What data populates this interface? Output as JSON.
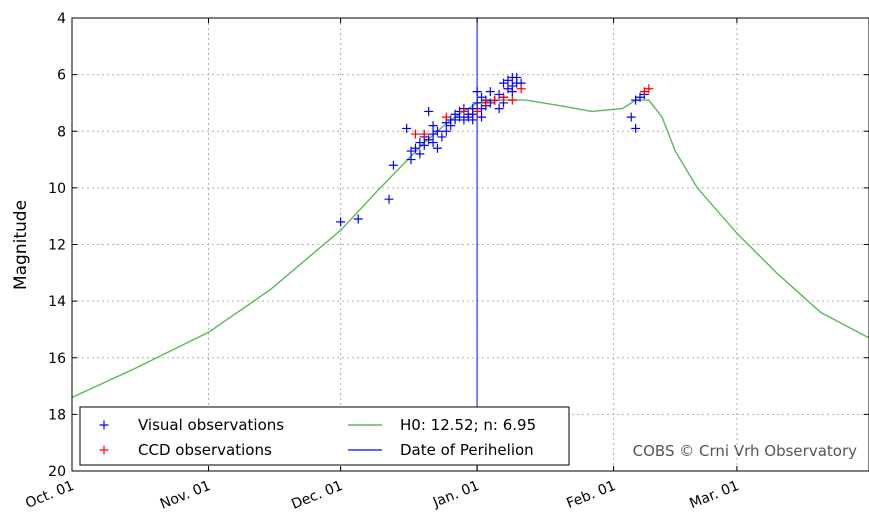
{
  "chart_data": {
    "type": "scatter",
    "ylabel": "Magnitude",
    "x_axis_type": "date",
    "xlim": [
      "2012-10-01",
      "2013-03-31"
    ],
    "xticks": [
      {
        "date": "2012-10-01",
        "label": "Oct. 01"
      },
      {
        "date": "2012-11-01",
        "label": "Nov. 01"
      },
      {
        "date": "2012-12-01",
        "label": "Dec. 01"
      },
      {
        "date": "2013-01-01",
        "label": "Jan. 01"
      },
      {
        "date": "2013-02-01",
        "label": "Feb. 01"
      },
      {
        "date": "2013-03-01",
        "label": "Mar. 01"
      }
    ],
    "ylim": [
      20,
      4
    ],
    "y_inverted": true,
    "yticks": [
      4,
      6,
      8,
      10,
      12,
      14,
      16,
      18,
      20
    ],
    "grid": true,
    "legend_position": "bottom-left",
    "colors": {
      "visual": "#0000ff",
      "ccd": "#ff0000",
      "model": "#5cb85c",
      "perihelion": "#3333ff"
    },
    "series": [
      {
        "name": "Visual observations",
        "marker": "+",
        "color": "#0000ff",
        "points": [
          [
            "2012-12-01",
            11.2
          ],
          [
            "2012-12-05",
            11.1
          ],
          [
            "2012-12-12",
            10.4
          ],
          [
            "2012-12-13",
            9.2
          ],
          [
            "2012-12-16",
            7.9
          ],
          [
            "2012-12-17",
            8.7
          ],
          [
            "2012-12-17",
            9.0
          ],
          [
            "2012-12-18",
            8.6
          ],
          [
            "2012-12-19",
            8.4
          ],
          [
            "2012-12-19",
            8.8
          ],
          [
            "2012-12-20",
            8.2
          ],
          [
            "2012-12-20",
            8.5
          ],
          [
            "2012-12-21",
            8.3
          ],
          [
            "2012-12-21",
            7.3
          ],
          [
            "2012-12-22",
            8.4
          ],
          [
            "2012-12-22",
            8.1
          ],
          [
            "2012-12-22",
            7.8
          ],
          [
            "2012-12-23",
            8.6
          ],
          [
            "2012-12-23",
            8.0
          ],
          [
            "2012-12-24",
            8.2
          ],
          [
            "2012-12-25",
            8.0
          ],
          [
            "2012-12-25",
            7.7
          ],
          [
            "2012-12-26",
            7.6
          ],
          [
            "2012-12-26",
            7.8
          ],
          [
            "2012-12-27",
            7.4
          ],
          [
            "2012-12-27",
            7.6
          ],
          [
            "2012-12-28",
            7.5
          ],
          [
            "2012-12-28",
            7.3
          ],
          [
            "2012-12-29",
            7.6
          ],
          [
            "2012-12-29",
            7.2
          ],
          [
            "2012-12-30",
            7.4
          ],
          [
            "2012-12-30",
            7.5
          ],
          [
            "2012-12-31",
            7.2
          ],
          [
            "2012-12-31",
            7.4
          ],
          [
            "2012-12-31",
            7.6
          ],
          [
            "2013-01-01",
            7.0
          ],
          [
            "2013-01-01",
            7.3
          ],
          [
            "2013-01-01",
            6.6
          ],
          [
            "2013-01-02",
            7.2
          ],
          [
            "2013-01-02",
            6.8
          ],
          [
            "2013-01-02",
            7.5
          ],
          [
            "2013-01-03",
            6.9
          ],
          [
            "2013-01-03",
            7.1
          ],
          [
            "2013-01-04",
            6.6
          ],
          [
            "2013-01-04",
            7.0
          ],
          [
            "2013-01-05",
            6.9
          ],
          [
            "2013-01-06",
            6.7
          ],
          [
            "2013-01-06",
            7.2
          ],
          [
            "2013-01-07",
            6.3
          ],
          [
            "2013-01-07",
            6.8
          ],
          [
            "2013-01-07",
            7.0
          ],
          [
            "2013-01-08",
            6.5
          ],
          [
            "2013-01-08",
            6.2
          ],
          [
            "2013-01-09",
            6.4
          ],
          [
            "2013-01-09",
            6.6
          ],
          [
            "2013-01-09",
            6.1
          ],
          [
            "2013-01-10",
            6.3
          ],
          [
            "2013-01-10",
            6.1
          ],
          [
            "2013-01-11",
            6.3
          ],
          [
            "2013-02-05",
            7.5
          ],
          [
            "2013-02-06",
            7.9
          ],
          [
            "2013-02-06",
            6.9
          ],
          [
            "2013-02-07",
            6.8
          ],
          [
            "2013-02-08",
            6.7
          ]
        ]
      },
      {
        "name": "CCD observations",
        "marker": "+",
        "color": "#ff0000",
        "points": [
          [
            "2012-12-18",
            8.1
          ],
          [
            "2012-12-20",
            8.1
          ],
          [
            "2012-12-25",
            7.5
          ],
          [
            "2012-12-29",
            7.3
          ],
          [
            "2013-01-01",
            7.3
          ],
          [
            "2013-01-03",
            7.0
          ],
          [
            "2013-01-05",
            6.9
          ],
          [
            "2013-01-07",
            6.8
          ],
          [
            "2013-01-09",
            6.9
          ],
          [
            "2013-01-11",
            6.5
          ],
          [
            "2013-02-09",
            6.5
          ],
          [
            "2013-02-08",
            6.6
          ]
        ]
      },
      {
        "name": "H0: 12.52; n: 6.95",
        "type": "line",
        "color": "#5cb85c",
        "points": [
          [
            "2012-10-01",
            17.4
          ],
          [
            "2012-10-15",
            16.4
          ],
          [
            "2012-11-01",
            15.1
          ],
          [
            "2012-11-15",
            13.6
          ],
          [
            "2012-12-01",
            11.5
          ],
          [
            "2012-12-10",
            10.0
          ],
          [
            "2012-12-20",
            8.4
          ],
          [
            "2012-12-26",
            7.6
          ],
          [
            "2013-01-01",
            7.0
          ],
          [
            "2013-01-06",
            6.9
          ],
          [
            "2013-01-12",
            6.9
          ],
          [
            "2013-01-20",
            7.1
          ],
          [
            "2013-01-27",
            7.3
          ],
          [
            "2013-02-03",
            7.2
          ],
          [
            "2013-02-06",
            6.9
          ],
          [
            "2013-02-09",
            6.9
          ],
          [
            "2013-02-12",
            7.5
          ],
          [
            "2013-02-15",
            8.7
          ],
          [
            "2013-02-20",
            10.0
          ],
          [
            "2013-03-01",
            11.6
          ],
          [
            "2013-03-10",
            13.0
          ],
          [
            "2013-03-20",
            14.4
          ],
          [
            "2013-03-31",
            15.3
          ]
        ]
      },
      {
        "name": "Date of Perihelion",
        "type": "vline",
        "color": "#3333ff",
        "x": "2013-01-01"
      }
    ],
    "annotations": [
      "COBS © Crni Vrh Observatory"
    ]
  }
}
